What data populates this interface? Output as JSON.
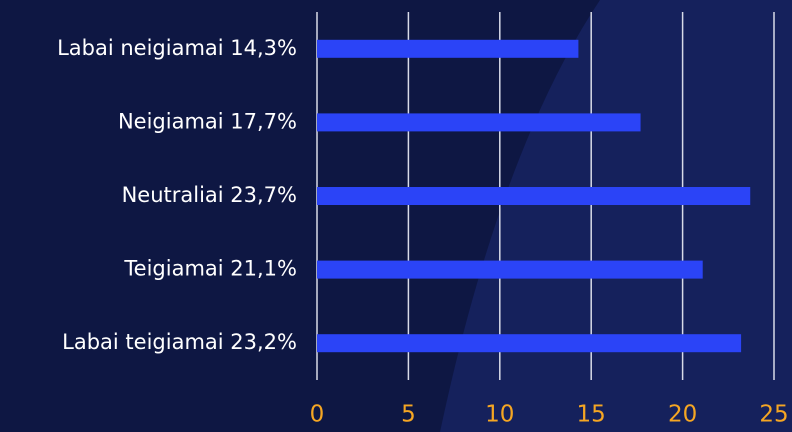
{
  "chart_data": {
    "type": "barh",
    "categories": [
      "Labai neigiamai 14,3%",
      "Neigiamai 17,7%",
      "Neutraliai 23,7%",
      "Teigiamai 21,1%",
      "Labai teigiamai 23,2%"
    ],
    "values": [
      14.3,
      17.7,
      23.7,
      21.1,
      23.2
    ],
    "color": "#2b44f7",
    "xlim": [
      0,
      25
    ],
    "xticks": [
      0,
      5,
      10,
      15,
      20,
      25
    ],
    "grid": true
  }
}
